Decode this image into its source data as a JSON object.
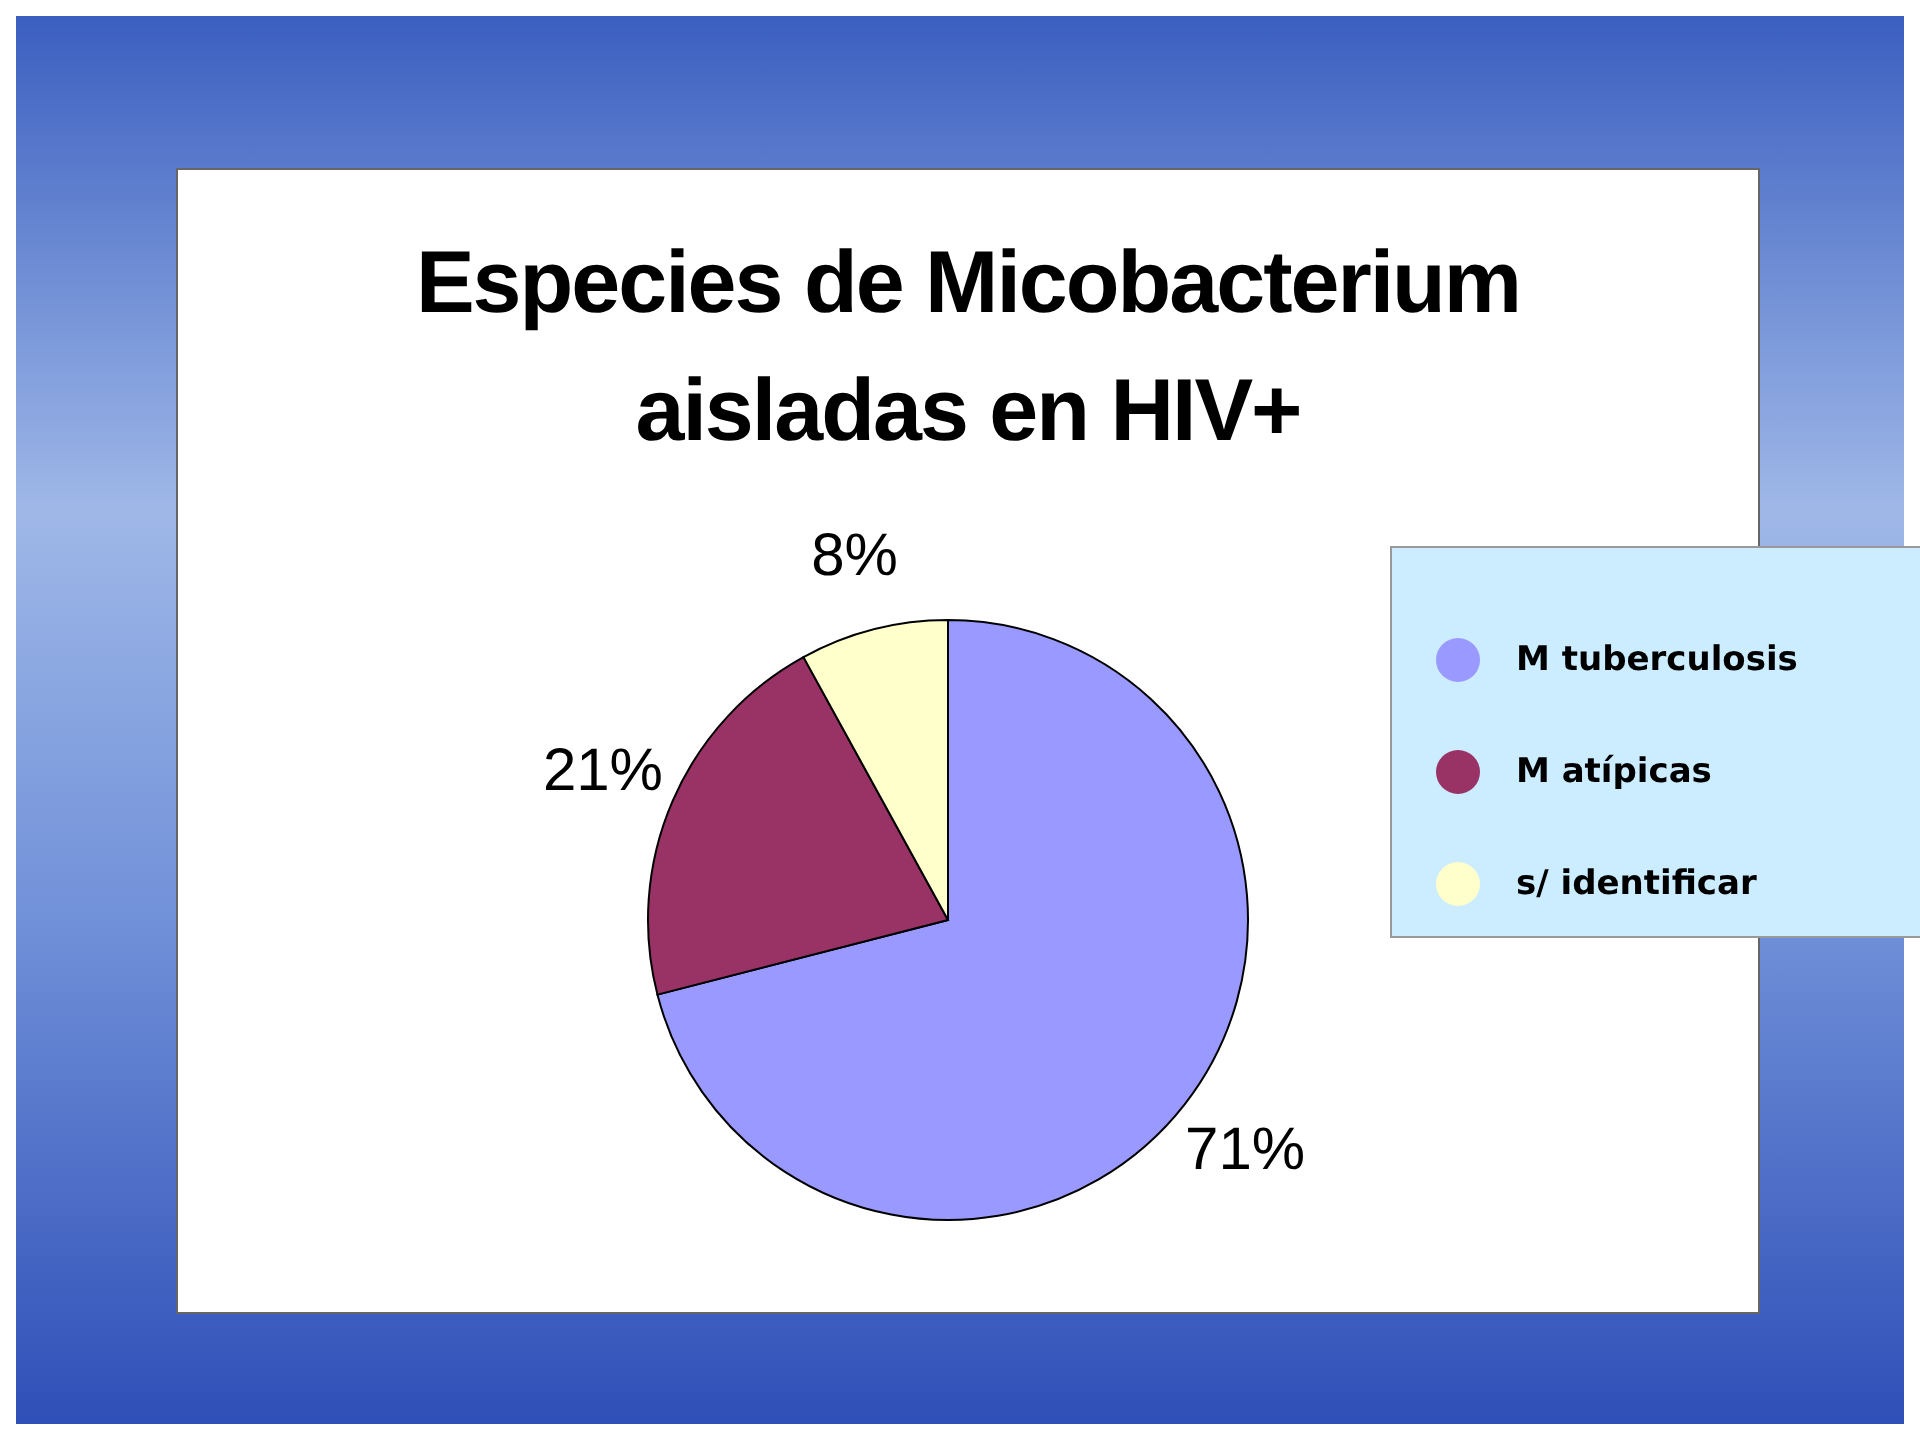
{
  "chart_data": {
    "type": "pie",
    "title": "Especies de Micobacterium aisladas en HIV+",
    "categories": [
      "M tuberculosis",
      "M atípicas",
      "s/ identificar"
    ],
    "values": [
      71,
      21,
      8
    ],
    "colors": [
      "#9999ff",
      "#993366",
      "#ffffcc"
    ],
    "value_labels": [
      "71%",
      "21%",
      "8%"
    ],
    "legend": "right"
  }
}
